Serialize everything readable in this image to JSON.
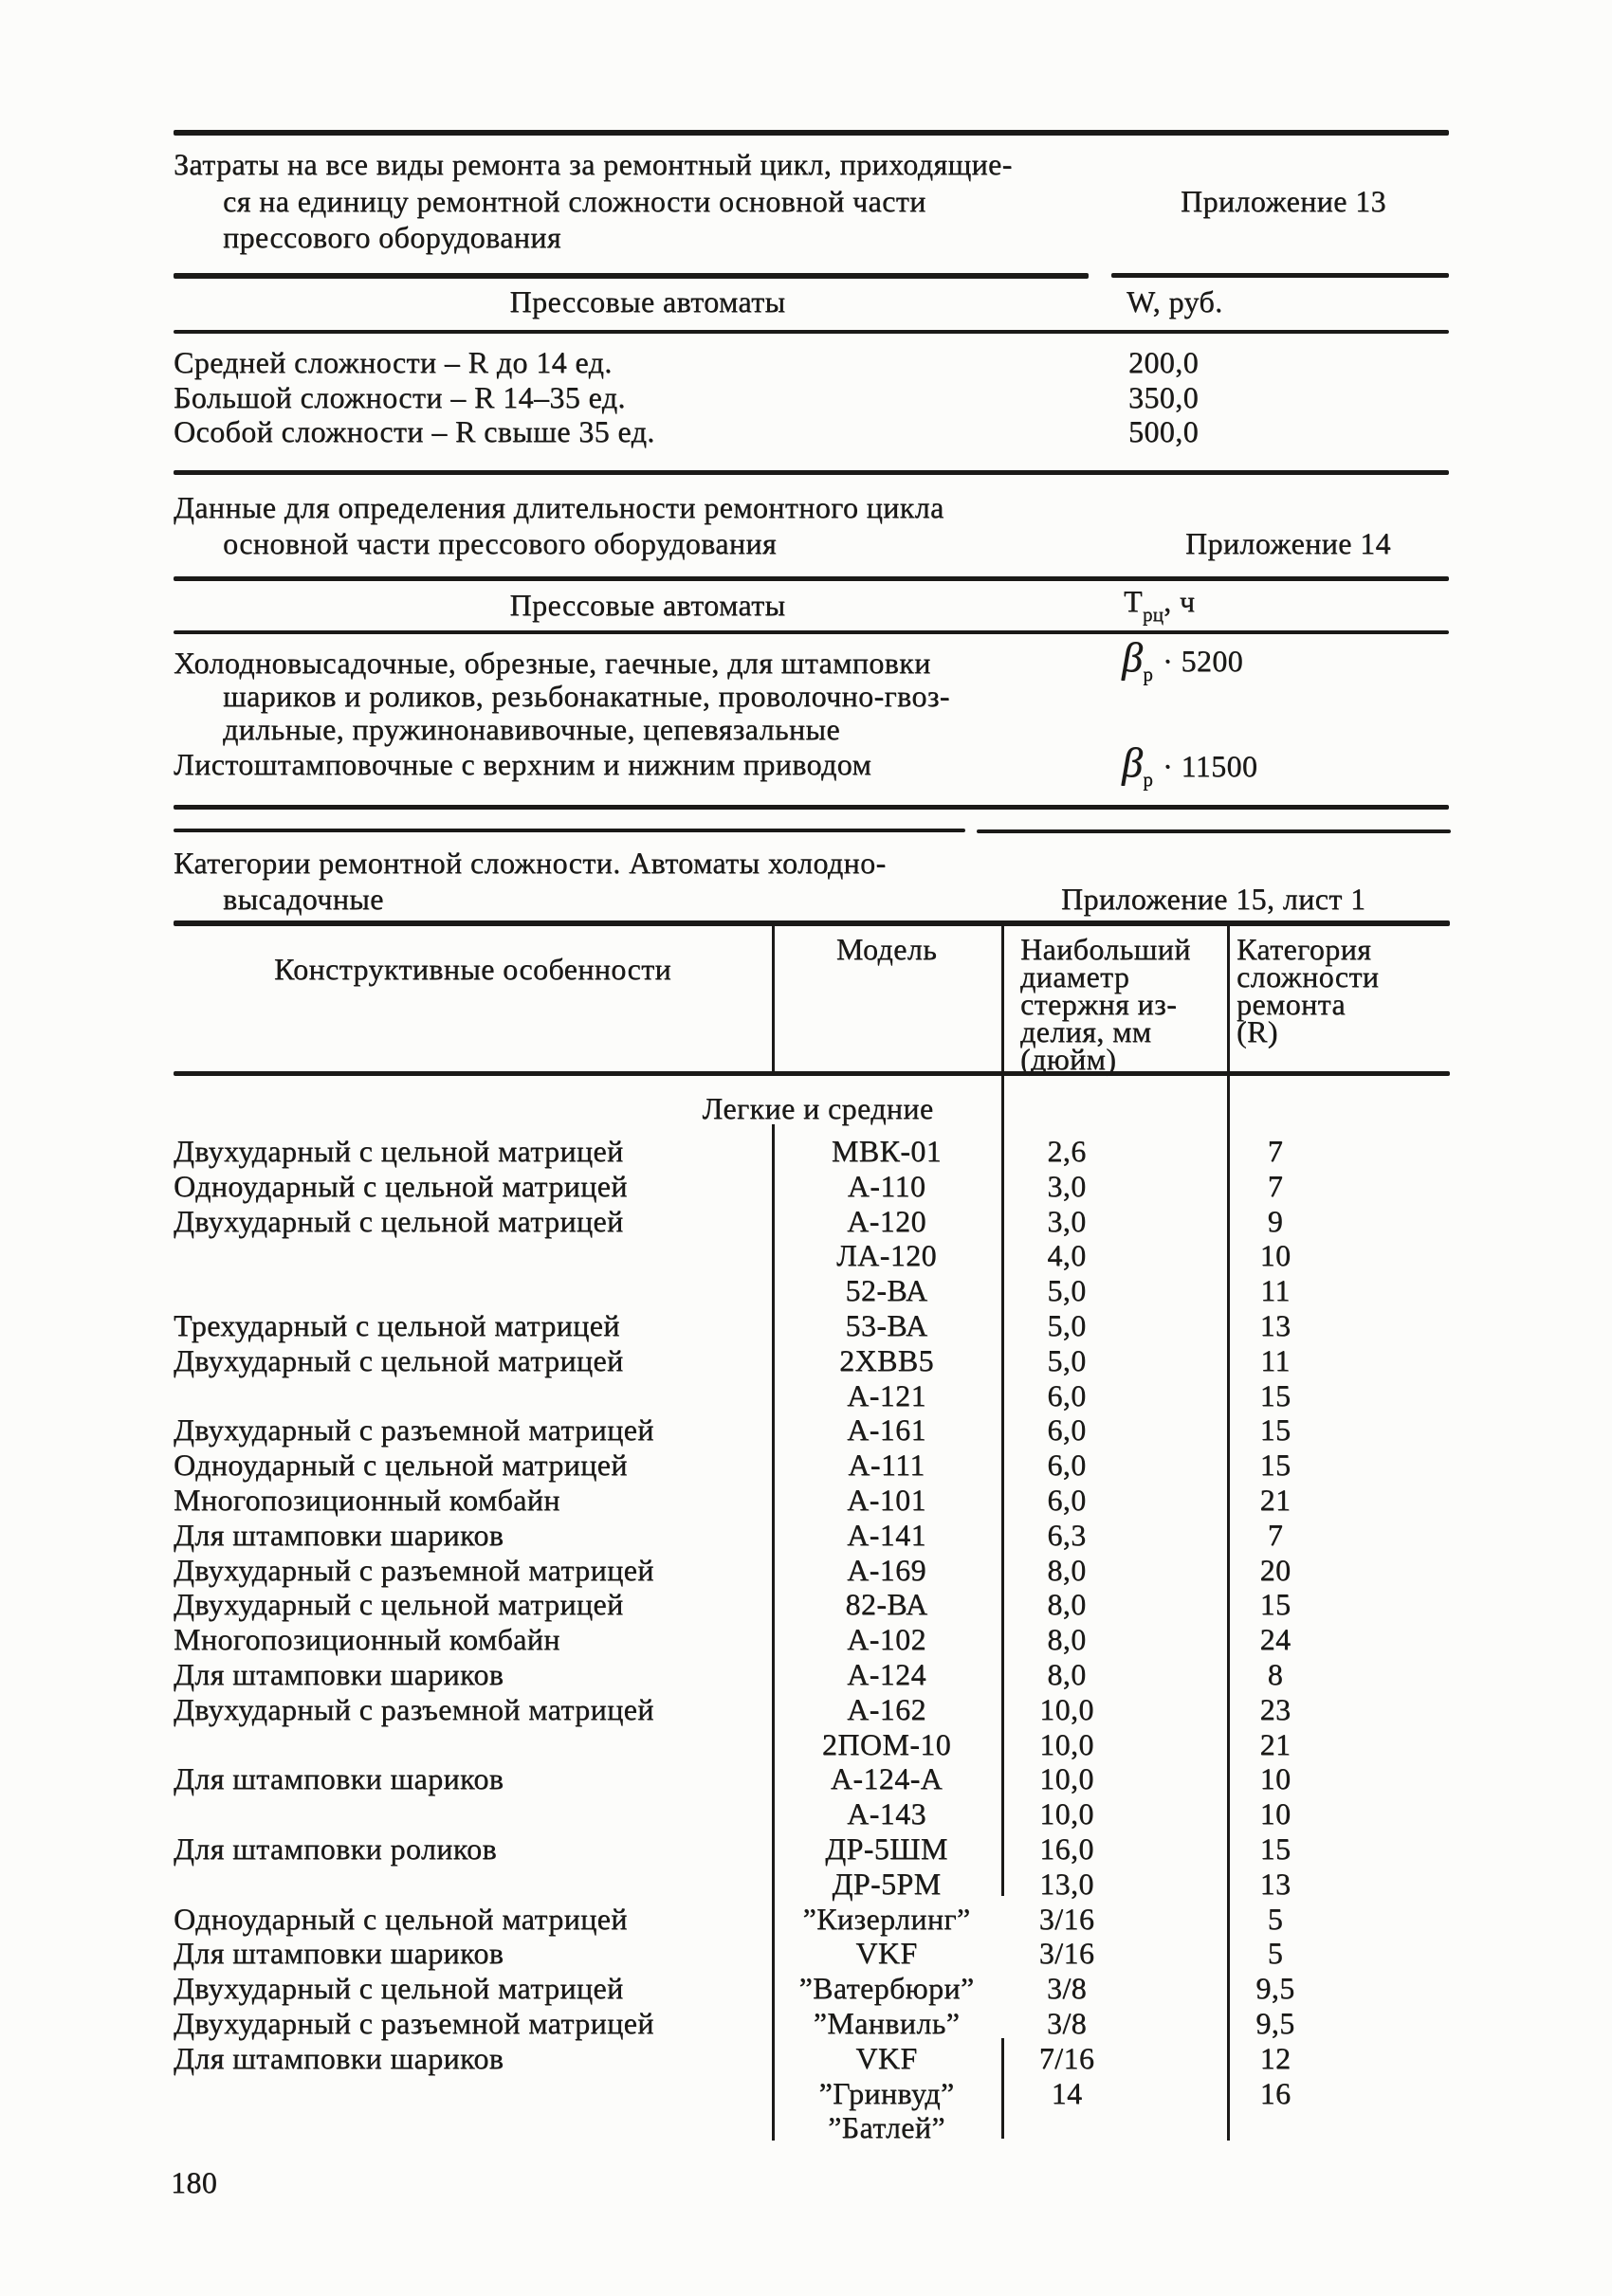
{
  "colors": {
    "ink": "#1b1a18",
    "paper": "#fcfcfa"
  },
  "page_number": "180",
  "appendix13": {
    "title_lines": [
      "Затраты на все виды ремонта за ремонтный цикл, приходящие-",
      "ся на единицу ремонтной сложности основной части",
      "прессового оборудования"
    ],
    "label": "Приложение 13",
    "table": {
      "header_left": "Прессовые автоматы",
      "header_right": "W, руб.",
      "rows": [
        {
          "name": "Средней сложности – R до 14 ед.",
          "value": "200,0"
        },
        {
          "name": "Большой сложности – R 14–35 ед.",
          "value": "350,0"
        },
        {
          "name": "Особой сложности – R свыше 35 ед.",
          "value": "500,0"
        }
      ]
    }
  },
  "appendix14": {
    "title_lines": [
      "Данные для определения длительности ремонтного цикла",
      "основной части прессового оборудования"
    ],
    "label": "Приложение 14",
    "table": {
      "header_left": "Прессовые автоматы",
      "header_right": {
        "symbol": "Т",
        "sub": "рц",
        "unit": ", ч"
      },
      "rows": [
        {
          "name_lines": [
            "Холодновысадочные, обрезные, гаечные, для штамповки",
            "шариков и роликов, резьбонакатные, проволочно-гвоз-",
            "дильные, пружинонавивочные, цепевязальные"
          ],
          "value": {
            "symbol": "β",
            "sub": "р",
            "factor": "· 5200"
          }
        },
        {
          "name_lines": [
            "Листоштамповочные с верхним и нижним приводом"
          ],
          "value": {
            "symbol": "β",
            "sub": "р",
            "factor": "· 11500"
          }
        }
      ]
    }
  },
  "appendix15": {
    "title_lines": [
      "Категории ремонтной сложности. Автоматы холодно-",
      "высадочные"
    ],
    "label": "Приложение 15, лист 1",
    "table": {
      "col1_header": "Конструктивные особенности",
      "col2_header": "Модель",
      "col3_header_lines": [
        "Наибольший",
        "диаметр",
        "стержня из-",
        "делия, мм",
        "(дюйм)"
      ],
      "col4_header_lines": [
        "Категория",
        "сложности",
        "ремонта",
        "(R)"
      ],
      "group_label": "Легкие и средние",
      "rows": [
        {
          "feature": "Двухударный с цельной матрицей",
          "model": "МВК-01",
          "diameter": "2,6",
          "r": "7"
        },
        {
          "feature": "Одноударный с цельной матрицей",
          "model": "А-110",
          "diameter": "3,0",
          "r": "7"
        },
        {
          "feature": "Двухударный с цельной матрицей",
          "model": "А-120",
          "diameter": "3,0",
          "r": "9"
        },
        {
          "feature": "",
          "model": "ЛА-120",
          "diameter": "4,0",
          "r": "10"
        },
        {
          "feature": "",
          "model": "52-ВА",
          "diameter": "5,0",
          "r": "11"
        },
        {
          "feature": "Трехударный с цельной матрицей",
          "model": "53-ВА",
          "diameter": "5,0",
          "r": "13"
        },
        {
          "feature": "Двухударный с цельной матрицей",
          "model": "2ХВВ5",
          "diameter": "5,0",
          "r": "11"
        },
        {
          "feature": "",
          "model": "А-121",
          "diameter": "6,0",
          "r": "15"
        },
        {
          "feature": "Двухударный с разъемной матрицей",
          "model": "А-161",
          "diameter": "6,0",
          "r": "15"
        },
        {
          "feature": "Одноударный с цельной матрицей",
          "model": "А-111",
          "diameter": "6,0",
          "r": "15"
        },
        {
          "feature": "Многопозиционный комбайн",
          "model": "А-101",
          "diameter": "6,0",
          "r": "21"
        },
        {
          "feature": "Для штамповки шариков",
          "model": "А-141",
          "diameter": "6,3",
          "r": "7"
        },
        {
          "feature": "Двухударный с разъемной матрицей",
          "model": "А-169",
          "diameter": "8,0",
          "r": "20"
        },
        {
          "feature": "Двухударный с цельной матрицей",
          "model": "82-ВА",
          "diameter": "8,0",
          "r": "15"
        },
        {
          "feature": "Многопозиционный комбайн",
          "model": "А-102",
          "diameter": "8,0",
          "r": "24"
        },
        {
          "feature": "Для штамповки шариков",
          "model": "А-124",
          "diameter": "8,0",
          "r": "8"
        },
        {
          "feature": "Двухударный с разъемной матрицей",
          "model": "А-162",
          "diameter": "10,0",
          "r": "23"
        },
        {
          "feature": "",
          "model": "2ПОМ-10",
          "diameter": "10,0",
          "r": "21"
        },
        {
          "feature": "Для штамповки шариков",
          "model": "А-124-А",
          "diameter": "10,0",
          "r": "10"
        },
        {
          "feature": "",
          "model": "А-143",
          "diameter": "10,0",
          "r": "10"
        },
        {
          "feature": "Для штамповки роликов",
          "model": "ДР-5ШМ",
          "diameter": "16,0",
          "r": "15"
        },
        {
          "feature": "",
          "model": "ДР-5РМ",
          "diameter": "13,0",
          "r": "13"
        },
        {
          "feature": "Одноударный с цельной матрицей",
          "model": "”Кизерлинг”",
          "diameter": "3/16",
          "r": "5"
        },
        {
          "feature": "Для штамповки шариков",
          "model": "VKF",
          "diameter": "3/16",
          "r": "5"
        },
        {
          "feature": "Двухударный с цельной матрицей",
          "model": "”Ватербюри”",
          "diameter": "3/8",
          "r": "9,5"
        },
        {
          "feature": "Двухударный с разъемной матрицей",
          "model": "”Манвиль”",
          "diameter": "3/8",
          "r": "9,5"
        },
        {
          "feature": "Для штамповки шариков",
          "model": "VKF",
          "diameter": "7/16",
          "r": "12"
        },
        {
          "feature": "",
          "model": "”Гринвуд”",
          "diameter": "14",
          "r": "16"
        },
        {
          "feature": "",
          "model": "”Батлей”",
          "diameter": "",
          "r": ""
        }
      ]
    }
  }
}
